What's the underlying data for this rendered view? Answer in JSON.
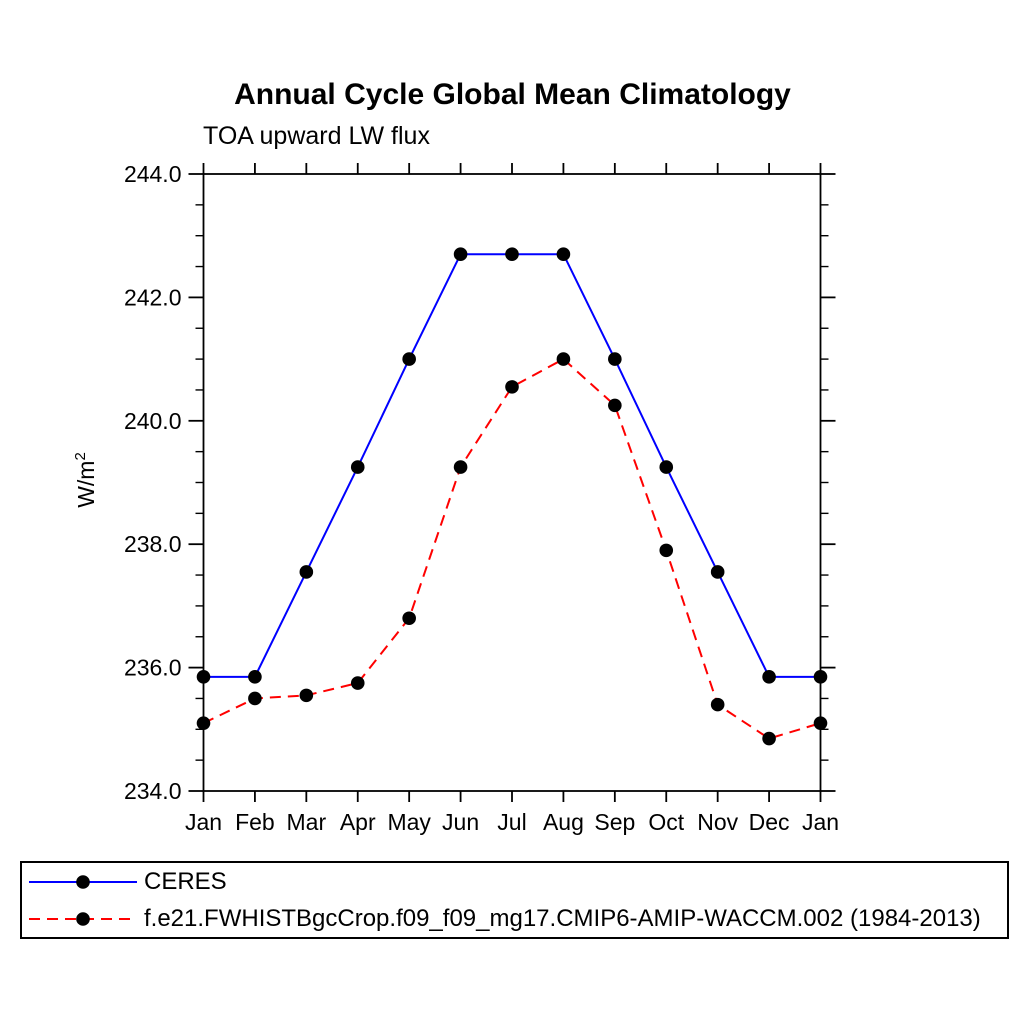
{
  "title": "Annual Cycle Global Mean Climatology",
  "subtitle": "TOA upward LW flux",
  "ylabel": {
    "base": "W/m",
    "exp": "2"
  },
  "legend": {
    "items": [
      {
        "id": "ceres",
        "label": "CERES",
        "color": "#0000ff",
        "style": "solid"
      },
      {
        "id": "model",
        "label": "f.e21.FWHISTBgcCrop.f09_f09_mg17.CMIP6-AMIP-WACCM.002 (1984-2013)",
        "color": "#ff0000",
        "style": "dashed"
      }
    ]
  },
  "chart_data": {
    "type": "line",
    "title": "Annual Cycle Global Mean Climatology",
    "subtitle": "TOA upward LW flux",
    "ylabel": "W/m^2",
    "x_tick_labels": [
      "Jan",
      "Feb",
      "Mar",
      "Apr",
      "May",
      "Jun",
      "Jul",
      "Aug",
      "Sep",
      "Oct",
      "Nov",
      "Dec",
      "Jan"
    ],
    "ylim": [
      234.0,
      244.0
    ],
    "y_major_ticks": [
      234.0,
      236.0,
      238.0,
      240.0,
      242.0,
      244.0
    ],
    "y_tick_labels": [
      "234.0",
      "236.0",
      "238.0",
      "240.0",
      "242.0",
      "244.0"
    ],
    "y_minor_step": 0.5,
    "grid": false,
    "legend_position": "bottom",
    "marker": "filled-circle",
    "marker_color": "#000000",
    "series": [
      {
        "name": "CERES",
        "color": "#0000ff",
        "style": "solid",
        "values": [
          235.85,
          235.85,
          237.55,
          239.25,
          241.0,
          242.7,
          242.7,
          242.7,
          241.0,
          239.25,
          237.55,
          235.85,
          235.85
        ]
      },
      {
        "name": "f.e21.FWHISTBgcCrop.f09_f09_mg17.CMIP6-AMIP-WACCM.002 (1984-2013)",
        "color": "#ff0000",
        "style": "dashed",
        "values": [
          235.1,
          235.5,
          235.55,
          235.75,
          236.8,
          239.25,
          240.55,
          241.0,
          240.25,
          237.9,
          235.4,
          234.85,
          235.1
        ]
      }
    ]
  }
}
